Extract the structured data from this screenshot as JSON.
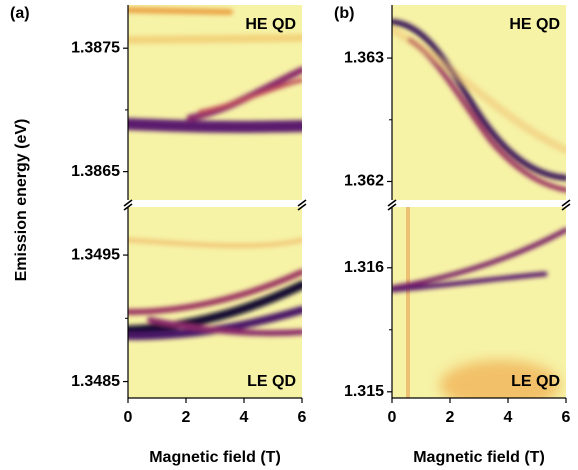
{
  "ylabel": "Emission energy (eV)",
  "chart_data": [
    {
      "type": "heatmap",
      "panel": "(a)",
      "annotation": "HE QD",
      "xlim": [
        0,
        6
      ],
      "ylim": [
        1.38627,
        1.38785
      ],
      "yticks": [
        1.3865,
        1.3875
      ],
      "yminorticks": [
        1.387
      ]
    },
    {
      "type": "heatmap",
      "annotation": "LE QD",
      "xlim": [
        0,
        6
      ],
      "ylim": [
        1.34837,
        1.34988
      ],
      "yticks": [
        1.3485,
        1.3495
      ],
      "yminorticks": [
        1.349
      ],
      "xticks": [
        0,
        2,
        4,
        6
      ],
      "xlabel": "Magnetic field (T)"
    },
    {
      "type": "heatmap",
      "panel": "(b)",
      "annotation": "HE QD",
      "xlim": [
        0,
        6
      ],
      "ylim": [
        1.36185,
        1.36343
      ],
      "yticks": [
        1.362,
        1.363
      ],
      "yminorticks": [
        1.3625
      ]
    },
    {
      "type": "heatmap",
      "annotation": "LE QD",
      "xlim": [
        0,
        6
      ],
      "ylim": [
        1.31495,
        1.31649
      ],
      "yticks": [
        1.315,
        1.316
      ],
      "yminorticks": [
        1.3155
      ],
      "xticks": [
        0,
        2,
        4,
        6
      ],
      "xlabel": "Magnetic field (T)"
    }
  ]
}
